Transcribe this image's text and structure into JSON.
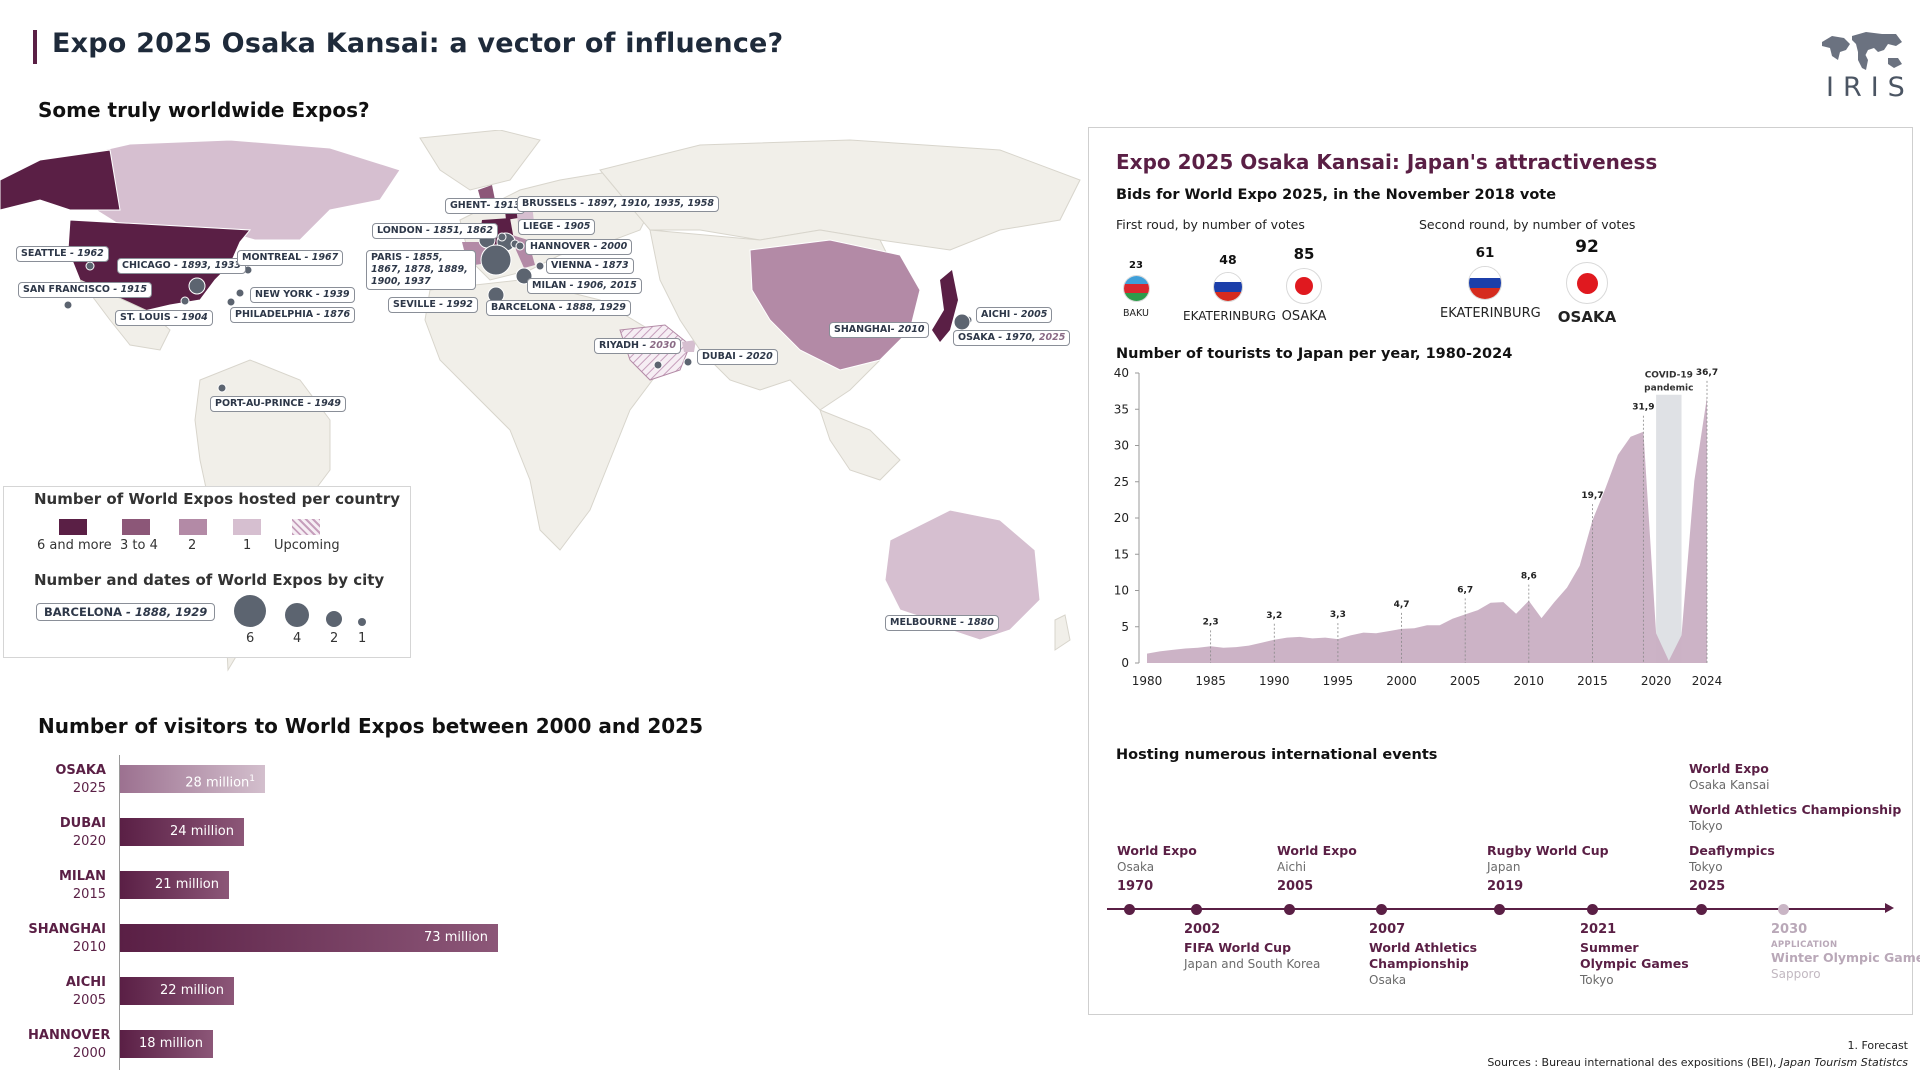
{
  "header": {
    "title": "Expo 2025 Osaka Kansai: a vector of influence?",
    "logo_text": "IRIS",
    "logo_icon": "world-map-icon"
  },
  "map_section": {
    "title": "Some truly worldwide Expos?",
    "cities": [
      {
        "name": "SEATTLE",
        "years": "1962"
      },
      {
        "name": "CHICAGO",
        "years": "1893, 1933"
      },
      {
        "name": "MONTREAL",
        "years": "1967"
      },
      {
        "name": "SAN FRANCISCO",
        "years": "1915"
      },
      {
        "name": "NEW YORK",
        "years": "1939"
      },
      {
        "name": "ST. LOUIS",
        "years": "1904"
      },
      {
        "name": "PHILADELPHIA",
        "years": "1876"
      },
      {
        "name": "PORT-AU-PRINCE",
        "years": "1949"
      },
      {
        "name": "GHENT",
        "years": "1913"
      },
      {
        "name": "BRUSSELS",
        "years": "1897, 1910, 1935, 1958"
      },
      {
        "name": "LONDON",
        "years": "1851, 1862"
      },
      {
        "name": "LIEGE",
        "years": "1905"
      },
      {
        "name": "PARIS",
        "years": "1855, 1867, 1878, 1889, 1900, 1937"
      },
      {
        "name": "HANNOVER",
        "years": "2000"
      },
      {
        "name": "VIENNA",
        "years": "1873"
      },
      {
        "name": "MILAN",
        "years": "1906, 2015"
      },
      {
        "name": "SEVILLE",
        "years": "1992"
      },
      {
        "name": "BARCELONA",
        "years": "1888, 1929"
      },
      {
        "name": "RIYADH",
        "years": "2030"
      },
      {
        "name": "DUBAI",
        "years": "2020"
      },
      {
        "name": "SHANGHAI",
        "years": "2010"
      },
      {
        "name": "AICHI",
        "years": "2005"
      },
      {
        "name": "OSAKA",
        "years": "1970, ",
        "years_upcoming": "2025"
      },
      {
        "name": "MELBOURNE",
        "years": "1880"
      }
    ],
    "legend": {
      "countries_title": "Number of World Expos hosted per country",
      "country_classes": [
        {
          "label": "6 and more",
          "color": "#5a1f45"
        },
        {
          "label": "3 to 4",
          "color": "#8c5778"
        },
        {
          "label": "2",
          "color": "#b38aa6"
        },
        {
          "label": "1",
          "color": "#d6bfd0"
        },
        {
          "label": "Upcoming",
          "color": "hatched"
        }
      ],
      "cities_title": "Number and dates of World Expos by city",
      "example_city": "BARCELONA",
      "example_years": "1888, 1929",
      "bubble_sizes": [
        "6",
        "4",
        "2",
        "1"
      ]
    }
  },
  "visitors": {
    "title": "Number of visitors to World Expos between 2000 and 2025",
    "rows": [
      {
        "city": "OSAKA",
        "year": "2025",
        "label": "28 million",
        "footnote": "1",
        "value": 28,
        "style": "light"
      },
      {
        "city": "DUBAI",
        "year": "2020",
        "label": "24 million",
        "value": 24,
        "style": "dark"
      },
      {
        "city": "MILAN",
        "year": "2015",
        "label": "21 million",
        "value": 21,
        "style": "dark"
      },
      {
        "city": "SHANGHAI",
        "year": "2010",
        "label": "73 million",
        "value": 73,
        "style": "dark"
      },
      {
        "city": "AICHI",
        "year": "2005",
        "label": "22 million",
        "value": 22,
        "style": "dark"
      },
      {
        "city": "HANNOVER",
        "year": "2000",
        "label": "18 million",
        "value": 18,
        "style": "dark"
      }
    ]
  },
  "panel": {
    "title": "Expo 2025 Osaka Kansai: Japan's attractiveness",
    "bids_title": "Bids for World Expo 2025, in the November 2018 vote",
    "first_round_label": "First roud, by number of votes",
    "second_round_label": "Second round, by number of votes",
    "first_round": [
      {
        "city": "BAKU",
        "votes": "23",
        "flag": "azerbaijan-flag-icon"
      },
      {
        "city": "EKATERINBURG",
        "votes": "48",
        "flag": "russia-flag-icon"
      },
      {
        "city": "OSAKA",
        "votes": "85",
        "flag": "japan-flag-icon"
      }
    ],
    "second_round": [
      {
        "city": "EKATERINBURG",
        "votes": "61",
        "flag": "russia-flag-icon"
      },
      {
        "city": "OSAKA",
        "votes": "92",
        "flag": "japan-flag-icon"
      }
    ],
    "tourists_title": "Number of tourists to Japan per year, 1980-2024",
    "covid_label": "COVID-19 pandemic",
    "events_title": "Hosting numerous international events",
    "timeline": [
      {
        "year": "1970",
        "lines": [
          {
            "label": "World Expo",
            "place": "Osaka"
          }
        ],
        "pos": "top",
        "style": "dark"
      },
      {
        "year": "2002",
        "lines": [
          {
            "label": "FIFA World Cup",
            "place": "Japan and South Korea"
          }
        ],
        "pos": "bottom",
        "style": "dark"
      },
      {
        "year": "2005",
        "lines": [
          {
            "label": "World Expo",
            "place": "Aichi"
          }
        ],
        "pos": "top",
        "style": "dark"
      },
      {
        "year": "2007",
        "lines": [
          {
            "label": "World Athletics Championship",
            "place": "Osaka"
          }
        ],
        "pos": "bottom",
        "style": "dark"
      },
      {
        "year": "2019",
        "lines": [
          {
            "label": "Rugby World Cup",
            "place": "Japan"
          }
        ],
        "pos": "top",
        "style": "dark"
      },
      {
        "year": "2021",
        "lines": [
          {
            "label": "Summer Olympic Games",
            "place": "Tokyo"
          }
        ],
        "pos": "bottom",
        "style": "dark"
      },
      {
        "year": "2025",
        "lines": [
          {
            "label": "World Expo",
            "place": "Osaka Kansai"
          },
          {
            "label": "World Athletics Championship",
            "place": "Tokyo"
          },
          {
            "label": "Deaflympics",
            "place": "Tokyo"
          }
        ],
        "pos": "top",
        "style": "dark"
      },
      {
        "year": "2030",
        "tag": "APPLICATION",
        "lines": [
          {
            "label": "Winter Olympic Games",
            "place": "Sapporo"
          }
        ],
        "pos": "bottom",
        "style": "light"
      }
    ]
  },
  "chart_data": {
    "type": "area",
    "title": "Number of tourists to Japan per year, 1980-2024",
    "xlabel": "",
    "ylabel": "",
    "x": [
      1980,
      1981,
      1982,
      1983,
      1984,
      1985,
      1986,
      1987,
      1988,
      1989,
      1990,
      1991,
      1992,
      1993,
      1994,
      1995,
      1996,
      1997,
      1998,
      1999,
      2000,
      2001,
      2002,
      2003,
      2004,
      2005,
      2006,
      2007,
      2008,
      2009,
      2010,
      2011,
      2012,
      2013,
      2014,
      2015,
      2016,
      2017,
      2018,
      2019,
      2020,
      2021,
      2022,
      2023,
      2024
    ],
    "values": [
      1.3,
      1.6,
      1.8,
      2.0,
      2.1,
      2.3,
      2.1,
      2.2,
      2.4,
      2.8,
      3.2,
      3.5,
      3.6,
      3.4,
      3.5,
      3.3,
      3.8,
      4.2,
      4.1,
      4.4,
      4.7,
      4.8,
      5.2,
      5.2,
      6.1,
      6.7,
      7.3,
      8.3,
      8.4,
      6.8,
      8.6,
      6.2,
      8.4,
      10.4,
      13.4,
      19.7,
      24.0,
      28.7,
      31.2,
      31.9,
      4.1,
      0.3,
      3.8,
      25.1,
      36.7
    ],
    "data_labels": [
      {
        "x": 1985,
        "label": "2,3"
      },
      {
        "x": 1990,
        "label": "3,2"
      },
      {
        "x": 1995,
        "label": "3,3"
      },
      {
        "x": 2000,
        "label": "4,7"
      },
      {
        "x": 2005,
        "label": "6,7"
      },
      {
        "x": 2010,
        "label": "8,6"
      },
      {
        "x": 2015,
        "label": "19,7"
      },
      {
        "x": 2019,
        "label": "31,9"
      },
      {
        "x": 2024,
        "label": "36,7"
      }
    ],
    "xticks": [
      "1980",
      "1985",
      "1990",
      "1995",
      "2000",
      "2005",
      "2010",
      "2015",
      "2020",
      "2024"
    ],
    "yticks": [
      "0",
      "5",
      "10",
      "15",
      "20",
      "25",
      "30",
      "35",
      "40"
    ],
    "ylim": [
      0,
      40
    ],
    "shaded_range": [
      2020,
      2022
    ],
    "grid": false,
    "color": "#c9afc3"
  },
  "footer": {
    "footnote": "1.   Forecast",
    "sources_prefix": "Sources : Bureau international des expositions (BEI), ",
    "sources_italic": "Japan Tourism Statistcs"
  }
}
